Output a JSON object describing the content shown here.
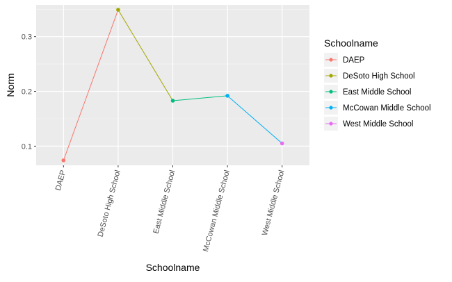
{
  "chart_data": {
    "type": "line",
    "xlabel": "Schoolname",
    "ylabel": "Norm",
    "categories": [
      "DAEP",
      "DeSoto High School",
      "East Middle School",
      "McCowan Middle School",
      "West Middle School"
    ],
    "values": [
      0.074,
      0.349,
      0.183,
      0.192,
      0.105
    ],
    "colors": [
      "#F8766D",
      "#A3A500",
      "#00BF7D",
      "#00B0F6",
      "#E76BF3"
    ],
    "ylim": [
      0.065,
      0.358
    ],
    "yticks": [
      0.1,
      0.2,
      0.3
    ],
    "ytick_labels": [
      "0.1",
      "0.2",
      "0.3"
    ],
    "grid": true,
    "legend": {
      "title": "Schoolname",
      "placement": "right",
      "entries": [
        "DAEP",
        "DeSoto High School",
        "East Middle School",
        "McCowan Middle School",
        "West Middle School"
      ]
    }
  }
}
